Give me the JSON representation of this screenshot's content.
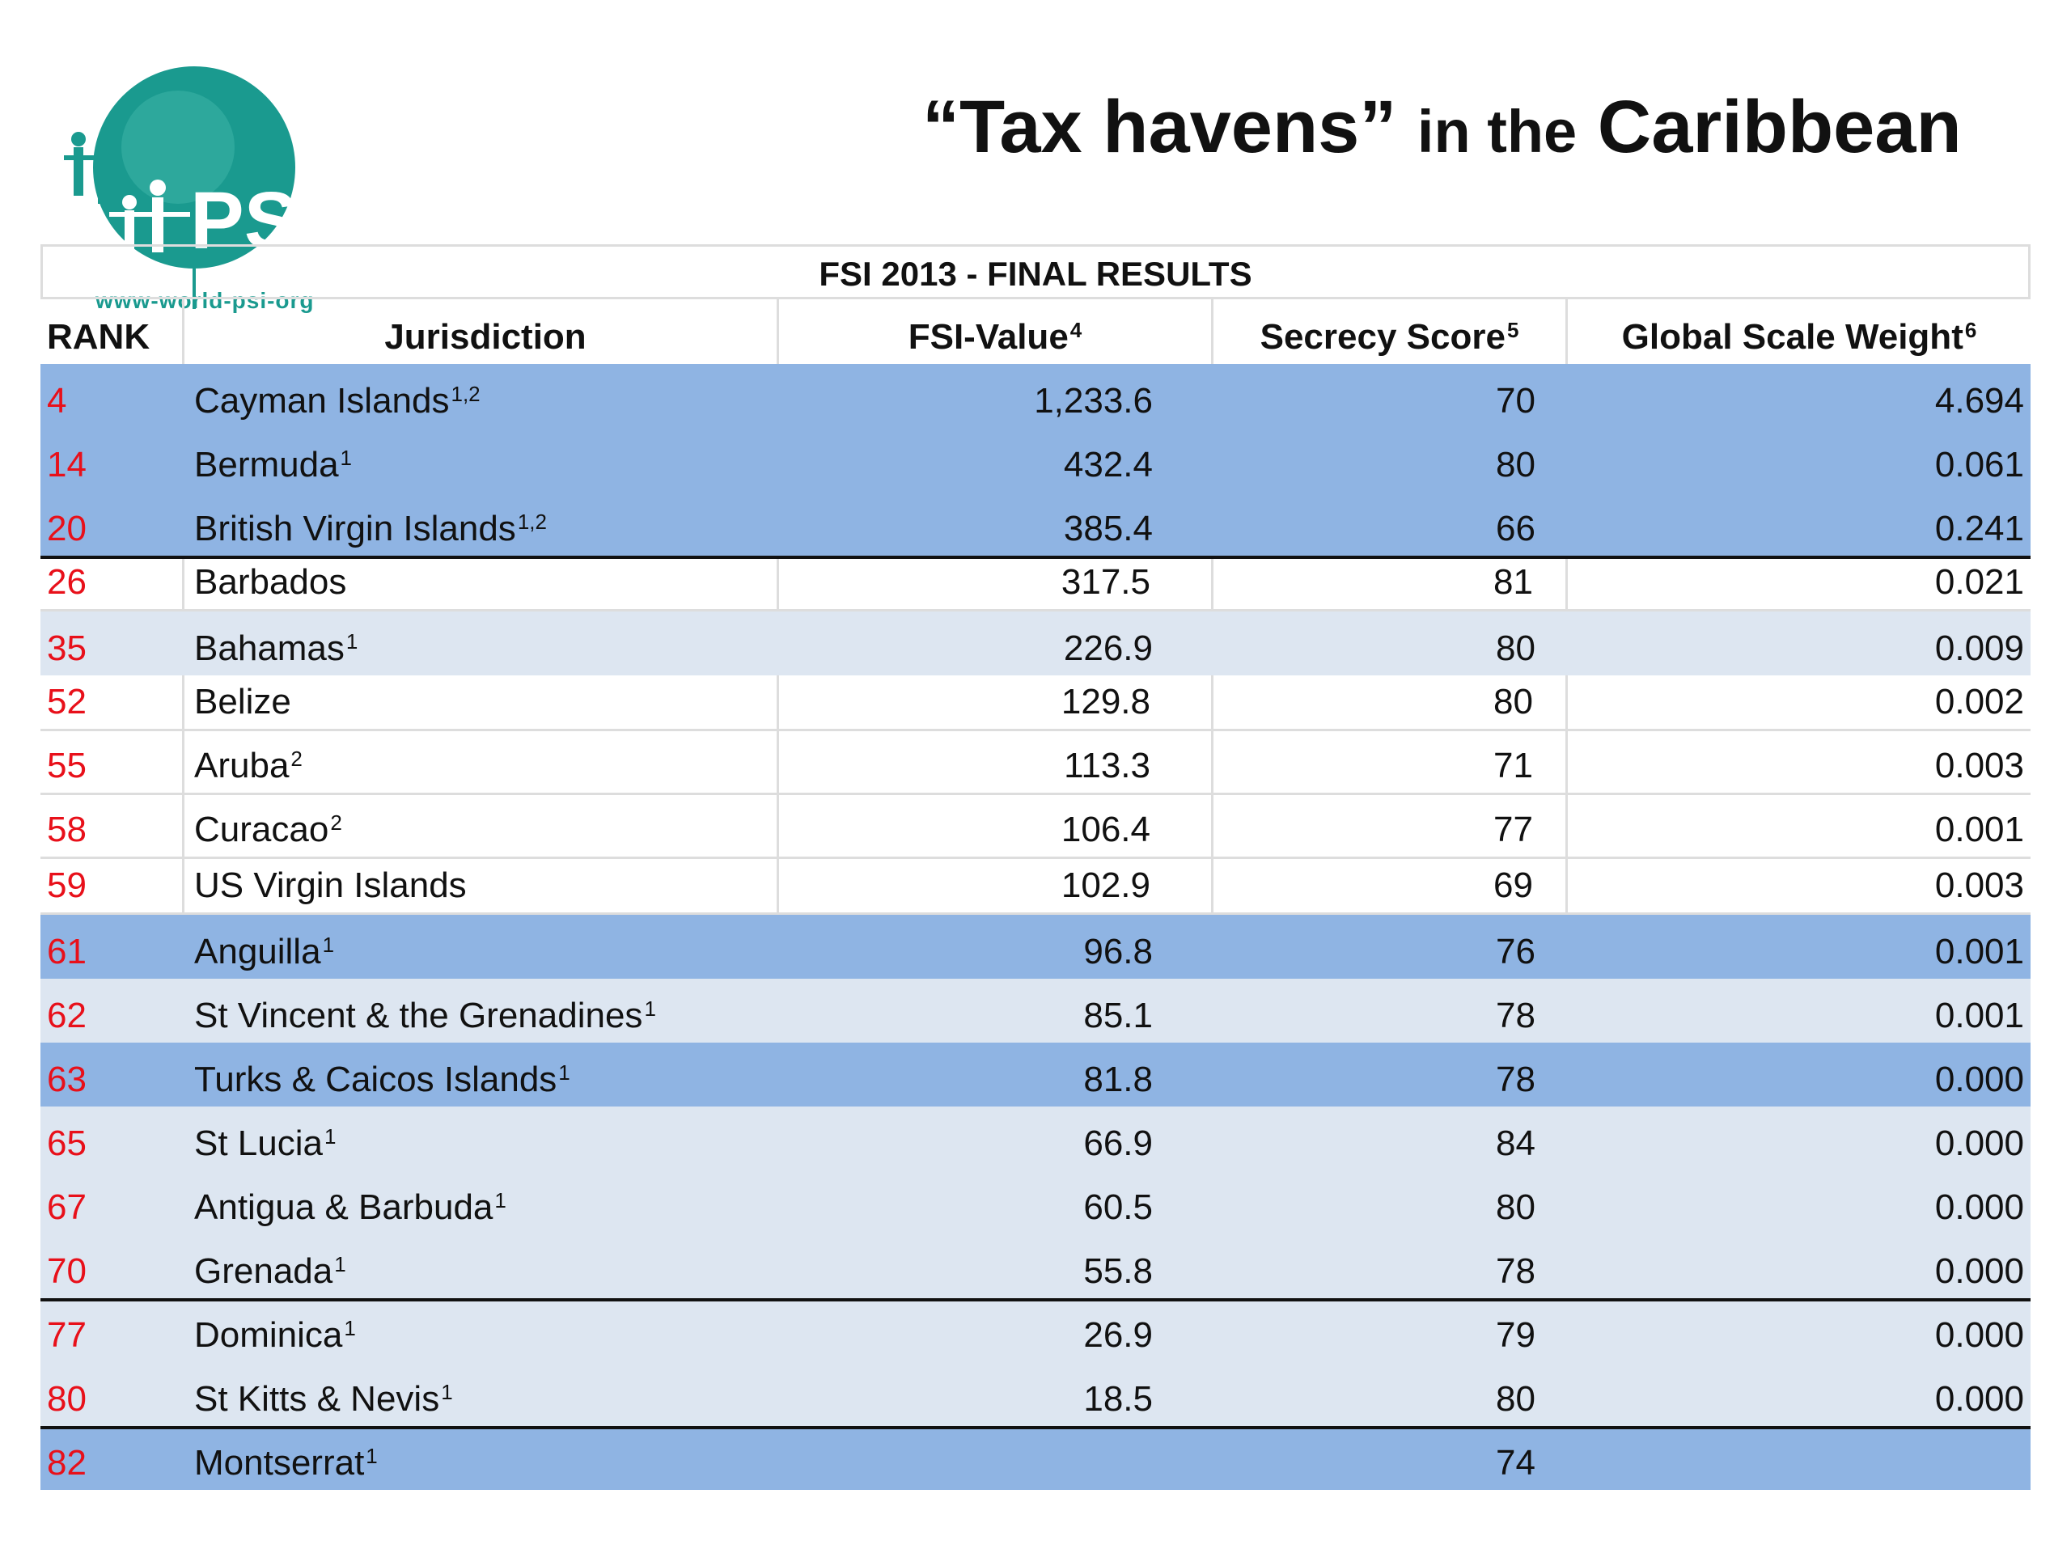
{
  "logo": {
    "text": "PSI",
    "url": "www-world-psi-org",
    "color": "#1a9a8f"
  },
  "title": {
    "part1": "“Tax havens”",
    "part2": "in the",
    "part3": "Caribbean"
  },
  "table": {
    "caption": "FSI 2013 - FINAL RESULTS",
    "headers": {
      "rank": "RANK",
      "jurisdiction": "Jurisdiction",
      "fsi_value": "FSI-Value",
      "fsi_value_sup": "4",
      "secrecy_score": "Secrecy Score",
      "secrecy_score_sup": "5",
      "global_scale_weight": "Global Scale Weight",
      "global_scale_weight_sup": "6"
    },
    "rows": [
      {
        "rank": "4",
        "jurisdiction": "Cayman Islands",
        "sup": "1,2",
        "fsi": "1,233.6",
        "secrecy": "70",
        "gsw": "4.694"
      },
      {
        "rank": "14",
        "jurisdiction": "Bermuda",
        "sup": "1",
        "fsi": "432.4",
        "secrecy": "80",
        "gsw": "0.061"
      },
      {
        "rank": "20",
        "jurisdiction": "British Virgin Islands",
        "sup": "1,2",
        "fsi": "385.4",
        "secrecy": "66",
        "gsw": "0.241"
      },
      {
        "rank": "26",
        "jurisdiction": "Barbados",
        "sup": "",
        "fsi": "317.5",
        "secrecy": "81",
        "gsw": "0.021"
      },
      {
        "rank": "35",
        "jurisdiction": "Bahamas",
        "sup": "1",
        "fsi": "226.9",
        "secrecy": "80",
        "gsw": "0.009"
      },
      {
        "rank": "52",
        "jurisdiction": "Belize",
        "sup": "",
        "fsi": "129.8",
        "secrecy": "80",
        "gsw": "0.002"
      },
      {
        "rank": "55",
        "jurisdiction": "Aruba",
        "sup": "2",
        "fsi": "113.3",
        "secrecy": "71",
        "gsw": "0.003"
      },
      {
        "rank": "58",
        "jurisdiction": "Curacao",
        "sup": "2",
        "fsi": "106.4",
        "secrecy": "77",
        "gsw": "0.001"
      },
      {
        "rank": "59",
        "jurisdiction": "US Virgin Islands",
        "sup": "",
        "fsi": "102.9",
        "secrecy": "69",
        "gsw": "0.003"
      },
      {
        "rank": "61",
        "jurisdiction": "Anguilla",
        "sup": "1",
        "fsi": "96.8",
        "secrecy": "76",
        "gsw": "0.001"
      },
      {
        "rank": "62",
        "jurisdiction": "St Vincent & the Grenadines",
        "sup": "1",
        "fsi": "85.1",
        "secrecy": "78",
        "gsw": "0.001"
      },
      {
        "rank": "63",
        "jurisdiction": "Turks & Caicos Islands",
        "sup": "1",
        "fsi": "81.8",
        "secrecy": "78",
        "gsw": "0.000"
      },
      {
        "rank": "65",
        "jurisdiction": "St Lucia",
        "sup": "1",
        "fsi": "66.9",
        "secrecy": "84",
        "gsw": "0.000"
      },
      {
        "rank": "67",
        "jurisdiction": "Antigua & Barbuda",
        "sup": "1",
        "fsi": "60.5",
        "secrecy": "80",
        "gsw": "0.000"
      },
      {
        "rank": "70",
        "jurisdiction": "Grenada",
        "sup": "1",
        "fsi": "55.8",
        "secrecy": "78",
        "gsw": "0.000"
      },
      {
        "rank": "77",
        "jurisdiction": "Dominica",
        "sup": "1",
        "fsi": "26.9",
        "secrecy": "79",
        "gsw": "0.000"
      },
      {
        "rank": "80",
        "jurisdiction": "St Kitts & Nevis",
        "sup": "1",
        "fsi": "18.5",
        "secrecy": "80",
        "gsw": "0.000"
      },
      {
        "rank": "82",
        "jurisdiction": "Montserrat",
        "sup": "1",
        "fsi": "",
        "secrecy": "74",
        "gsw": ""
      }
    ]
  },
  "colors": {
    "rank_red": "#e8101a",
    "row_blue": "#8fb4e3",
    "row_light": "#dde6f1"
  }
}
